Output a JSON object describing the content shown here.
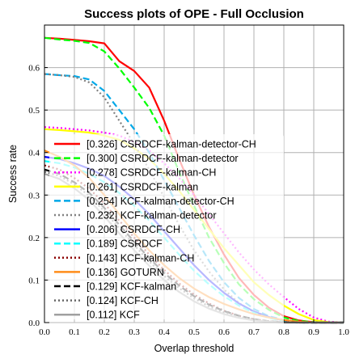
{
  "chart_data": {
    "type": "line",
    "title": "Success plots of OPE - Full Occlusion",
    "xlabel": "Overlap threshold",
    "ylabel": "Success rate",
    "xlim": [
      0,
      1
    ],
    "ylim": [
      0,
      0.7
    ],
    "x_ticks": [
      "0.0",
      "0.1",
      "0.2",
      "0.3",
      "0.4",
      "0.5",
      "0.6",
      "0.7",
      "0.8",
      "0.9",
      "1.0"
    ],
    "y_ticks": [
      "0.0",
      "0.1",
      "0.2",
      "0.3",
      "0.4",
      "0.5",
      "0.6"
    ],
    "grid": true,
    "legend_position": "lower-left",
    "x": [
      0,
      0.05,
      0.1,
      0.15,
      0.2,
      0.25,
      0.3,
      0.35,
      0.4,
      0.45,
      0.5,
      0.55,
      0.6,
      0.65,
      0.7,
      0.75,
      0.8,
      0.85,
      0.9,
      0.95,
      1.0
    ],
    "series": [
      {
        "name": "[0.326] CSRDCF-kalman-detector-CH",
        "color": "#ff0000",
        "dash": "solid",
        "values": [
          0.67,
          0.668,
          0.665,
          0.662,
          0.657,
          0.615,
          0.592,
          0.553,
          0.475,
          0.385,
          0.3,
          0.225,
          0.16,
          0.105,
          0.065,
          0.035,
          0.015,
          0.005,
          0.001,
          0,
          0
        ]
      },
      {
        "name": "[0.300] CSRDCF-kalman-detector",
        "color": "#00ff00",
        "dash": "dashed",
        "values": [
          0.67,
          0.666,
          0.663,
          0.658,
          0.638,
          0.598,
          0.553,
          0.505,
          0.44,
          0.355,
          0.275,
          0.2,
          0.14,
          0.09,
          0.055,
          0.03,
          0.012,
          0.004,
          0.001,
          0,
          0
        ]
      },
      {
        "name": "[0.278] CSRDCF-kalman-CH",
        "color": "#ff00ff",
        "dash": "dotted",
        "values": [
          0.46,
          0.458,
          0.455,
          0.452,
          0.447,
          0.44,
          0.425,
          0.405,
          0.375,
          0.34,
          0.3,
          0.255,
          0.21,
          0.165,
          0.125,
          0.09,
          0.06,
          0.032,
          0.012,
          0.002,
          0
        ]
      },
      {
        "name": "[0.261] CSRDCF-kalman",
        "color": "#ffff00",
        "dash": "solid",
        "values": [
          0.455,
          0.453,
          0.45,
          0.447,
          0.44,
          0.43,
          0.41,
          0.385,
          0.35,
          0.31,
          0.265,
          0.22,
          0.175,
          0.135,
          0.095,
          0.065,
          0.04,
          0.02,
          0.006,
          0.001,
          0
        ]
      },
      {
        "name": "[0.254] KCF-kalman-detector-CH",
        "color": "#00a8e8",
        "dash": "dashed",
        "values": [
          0.585,
          0.582,
          0.58,
          0.572,
          0.545,
          0.5,
          0.455,
          0.4,
          0.335,
          0.27,
          0.205,
          0.145,
          0.095,
          0.058,
          0.032,
          0.015,
          0.006,
          0.002,
          0,
          0,
          0
        ]
      },
      {
        "name": "[0.232] KCF-kalman-detector",
        "color": "#808080",
        "dash": "dotted",
        "values": [
          0.585,
          0.582,
          0.578,
          0.565,
          0.53,
          0.475,
          0.42,
          0.36,
          0.295,
          0.23,
          0.17,
          0.12,
          0.078,
          0.046,
          0.025,
          0.012,
          0.004,
          0.001,
          0,
          0,
          0
        ]
      },
      {
        "name": "[0.206] CSRDCF-CH",
        "color": "#0000ff",
        "dash": "solid",
        "values": [
          0.39,
          0.385,
          0.375,
          0.362,
          0.345,
          0.32,
          0.29,
          0.255,
          0.215,
          0.175,
          0.135,
          0.1,
          0.07,
          0.045,
          0.026,
          0.013,
          0.005,
          0.001,
          0,
          0,
          0
        ]
      },
      {
        "name": "[0.189] CSRDCF",
        "color": "#00ffff",
        "dash": "dashed",
        "values": [
          0.38,
          0.375,
          0.365,
          0.35,
          0.33,
          0.305,
          0.275,
          0.24,
          0.2,
          0.16,
          0.122,
          0.09,
          0.062,
          0.04,
          0.023,
          0.011,
          0.004,
          0.001,
          0,
          0,
          0
        ]
      },
      {
        "name": "[0.143] KCF-kalman-CH",
        "color": "#8b0000",
        "dash": "dotted",
        "values": [
          0.37,
          0.36,
          0.34,
          0.315,
          0.28,
          0.24,
          0.2,
          0.16,
          0.124,
          0.092,
          0.066,
          0.045,
          0.028,
          0.016,
          0.008,
          0.003,
          0.001,
          0,
          0,
          0,
          0
        ]
      },
      {
        "name": "[0.136] GOTURN",
        "color": "#ff8c1a",
        "dash": "solid",
        "values": [
          0.405,
          0.39,
          0.37,
          0.34,
          0.3,
          0.255,
          0.21,
          0.17,
          0.135,
          0.105,
          0.08,
          0.06,
          0.044,
          0.031,
          0.02,
          0.012,
          0.006,
          0.002,
          0,
          0,
          0
        ]
      },
      {
        "name": "[0.129] KCF-kalman",
        "color": "#000000",
        "dash": "dashed",
        "values": [
          0.36,
          0.35,
          0.33,
          0.305,
          0.27,
          0.23,
          0.19,
          0.152,
          0.117,
          0.087,
          0.062,
          0.042,
          0.027,
          0.016,
          0.008,
          0.003,
          0.001,
          0,
          0,
          0,
          0
        ]
      },
      {
        "name": "[0.124] KCF-CH",
        "color": "#666666",
        "dash": "dotted",
        "values": [
          0.355,
          0.345,
          0.325,
          0.298,
          0.262,
          0.222,
          0.182,
          0.144,
          0.11,
          0.081,
          0.057,
          0.038,
          0.024,
          0.014,
          0.007,
          0.003,
          0.001,
          0,
          0,
          0,
          0
        ]
      },
      {
        "name": "[0.112] KCF",
        "color": "#a0a0a0",
        "dash": "solid",
        "values": [
          0.35,
          0.338,
          0.316,
          0.288,
          0.25,
          0.21,
          0.17,
          0.134,
          0.1,
          0.072,
          0.05,
          0.033,
          0.02,
          0.011,
          0.005,
          0.002,
          0,
          0,
          0,
          0,
          0
        ]
      }
    ]
  }
}
